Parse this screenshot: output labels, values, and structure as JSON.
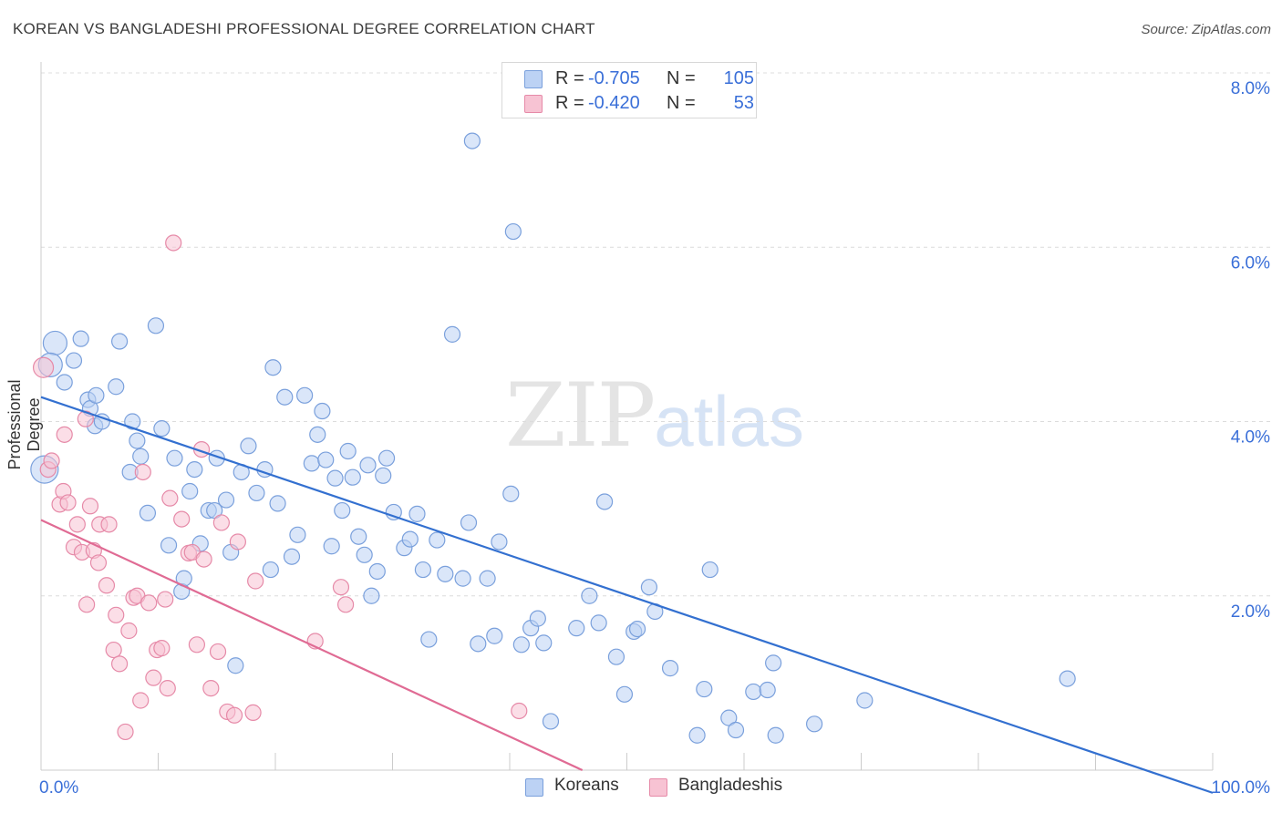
{
  "title": "KOREAN VS BANGLADESHI PROFESSIONAL DEGREE CORRELATION CHART",
  "source": "Source: ZipAtlas.com",
  "watermark": {
    "zip": "ZIP",
    "atlas": "atlas"
  },
  "legend": {
    "rows": [
      {
        "r_label": "R =",
        "r_value": "-0.705",
        "n_label": "N =",
        "n_value": "105",
        "color": "#bcd2f4"
      },
      {
        "r_label": "R =",
        "r_value": "-0.420",
        "n_label": "N =",
        "n_value": "53",
        "color": "#f7c3d3"
      }
    ]
  },
  "bottom_legend": {
    "koreans": "Koreans",
    "bangladeshis": "Bangladeshis"
  },
  "chart_data": {
    "type": "scatter",
    "ylabel": "Professional Degree",
    "xlim": [
      0,
      100
    ],
    "ylim": [
      0,
      8.0
    ],
    "y_ticks": [
      "2.0%",
      "4.0%",
      "6.0%",
      "8.0%"
    ],
    "x_tick_labels": [
      "0.0%",
      "100.0%"
    ],
    "grid": true,
    "series": [
      {
        "name": "Koreans",
        "color": "#7aa0dc",
        "fill": "#bcd2f4",
        "trend": {
          "x0": 0,
          "y0": 4.28,
          "x1": 100,
          "y1": -0.26,
          "color": "#3370d0"
        },
        "points": [
          [
            1.2,
            4.9
          ],
          [
            0.8,
            4.65
          ],
          [
            0.3,
            3.45
          ],
          [
            2.0,
            4.45
          ],
          [
            3.4,
            4.95
          ],
          [
            2.8,
            4.7
          ],
          [
            4.0,
            4.25
          ],
          [
            4.2,
            4.15
          ],
          [
            4.7,
            4.3
          ],
          [
            4.6,
            3.95
          ],
          [
            5.2,
            4.0
          ],
          [
            6.4,
            4.4
          ],
          [
            6.7,
            4.92
          ],
          [
            7.6,
            3.42
          ],
          [
            7.8,
            4.0
          ],
          [
            8.2,
            3.78
          ],
          [
            8.5,
            3.6
          ],
          [
            9.1,
            2.95
          ],
          [
            9.8,
            5.1
          ],
          [
            10.3,
            3.92
          ],
          [
            10.9,
            2.58
          ],
          [
            11.4,
            3.58
          ],
          [
            12.0,
            2.05
          ],
          [
            12.2,
            2.2
          ],
          [
            12.7,
            3.2
          ],
          [
            13.1,
            3.45
          ],
          [
            13.6,
            2.6
          ],
          [
            14.3,
            2.98
          ],
          [
            14.8,
            2.98
          ],
          [
            15.0,
            3.58
          ],
          [
            15.8,
            3.1
          ],
          [
            16.2,
            2.5
          ],
          [
            16.6,
            1.2
          ],
          [
            17.1,
            3.42
          ],
          [
            17.7,
            3.72
          ],
          [
            18.4,
            3.18
          ],
          [
            19.1,
            3.45
          ],
          [
            19.6,
            2.3
          ],
          [
            19.8,
            4.62
          ],
          [
            20.2,
            3.06
          ],
          [
            20.8,
            4.28
          ],
          [
            21.4,
            2.45
          ],
          [
            21.9,
            2.7
          ],
          [
            22.5,
            4.3
          ],
          [
            23.1,
            3.52
          ],
          [
            23.6,
            3.85
          ],
          [
            24.0,
            4.12
          ],
          [
            24.3,
            3.56
          ],
          [
            24.8,
            2.57
          ],
          [
            25.1,
            3.35
          ],
          [
            25.7,
            2.98
          ],
          [
            26.2,
            3.66
          ],
          [
            26.6,
            3.36
          ],
          [
            27.1,
            2.68
          ],
          [
            27.6,
            2.47
          ],
          [
            27.9,
            3.5
          ],
          [
            28.2,
            2.0
          ],
          [
            28.7,
            2.28
          ],
          [
            29.2,
            3.38
          ],
          [
            29.5,
            3.58
          ],
          [
            30.1,
            2.96
          ],
          [
            31.0,
            2.55
          ],
          [
            31.5,
            2.65
          ],
          [
            32.1,
            2.94
          ],
          [
            32.6,
            2.3
          ],
          [
            33.1,
            1.5
          ],
          [
            33.8,
            2.64
          ],
          [
            34.5,
            2.25
          ],
          [
            35.1,
            5.0
          ],
          [
            36.0,
            2.2
          ],
          [
            36.5,
            2.84
          ],
          [
            36.8,
            7.22
          ],
          [
            37.3,
            1.45
          ],
          [
            38.1,
            2.2
          ],
          [
            38.7,
            1.54
          ],
          [
            39.1,
            2.62
          ],
          [
            40.1,
            3.17
          ],
          [
            41.0,
            1.44
          ],
          [
            41.8,
            1.63
          ],
          [
            42.4,
            1.74
          ],
          [
            42.9,
            1.46
          ],
          [
            43.5,
            0.56
          ],
          [
            45.7,
            1.63
          ],
          [
            46.8,
            2.0
          ],
          [
            47.6,
            1.69
          ],
          [
            48.1,
            3.08
          ],
          [
            49.1,
            1.3
          ],
          [
            49.8,
            0.87
          ],
          [
            50.6,
            1.59
          ],
          [
            50.9,
            1.62
          ],
          [
            51.9,
            2.1
          ],
          [
            52.4,
            1.82
          ],
          [
            53.7,
            1.17
          ],
          [
            56.0,
            0.4
          ],
          [
            56.6,
            0.93
          ],
          [
            57.1,
            2.3
          ],
          [
            58.7,
            0.6
          ],
          [
            59.3,
            0.46
          ],
          [
            60.8,
            0.9
          ],
          [
            62.0,
            0.92
          ],
          [
            62.5,
            1.23
          ],
          [
            62.7,
            0.4
          ],
          [
            66.0,
            0.53
          ],
          [
            70.3,
            0.8
          ],
          [
            87.6,
            1.05
          ],
          [
            40.3,
            6.18
          ]
        ]
      },
      {
        "name": "Bangladeshis",
        "color": "#e68aa8",
        "fill": "#f7c3d3",
        "trend": {
          "x0": 0,
          "y0": 2.87,
          "x1": 46.2,
          "y1": 0.0,
          "color": "#e06b94"
        },
        "points": [
          [
            0.2,
            4.62
          ],
          [
            0.6,
            3.45
          ],
          [
            0.9,
            3.55
          ],
          [
            1.6,
            3.05
          ],
          [
            1.9,
            3.2
          ],
          [
            2.0,
            3.85
          ],
          [
            2.3,
            3.07
          ],
          [
            2.8,
            2.56
          ],
          [
            3.1,
            2.82
          ],
          [
            3.5,
            2.5
          ],
          [
            3.8,
            4.03
          ],
          [
            3.9,
            1.9
          ],
          [
            4.2,
            3.03
          ],
          [
            4.5,
            2.52
          ],
          [
            4.9,
            2.38
          ],
          [
            5.0,
            2.82
          ],
          [
            5.6,
            2.12
          ],
          [
            5.8,
            2.82
          ],
          [
            6.2,
            1.38
          ],
          [
            6.4,
            1.78
          ],
          [
            6.7,
            1.22
          ],
          [
            7.2,
            0.44
          ],
          [
            7.5,
            1.6
          ],
          [
            7.9,
            1.98
          ],
          [
            8.2,
            2.0
          ],
          [
            8.5,
            0.8
          ],
          [
            8.7,
            3.42
          ],
          [
            9.2,
            1.92
          ],
          [
            9.6,
            1.06
          ],
          [
            9.9,
            1.38
          ],
          [
            10.3,
            1.4
          ],
          [
            10.6,
            1.96
          ],
          [
            10.8,
            0.94
          ],
          [
            11.0,
            3.12
          ],
          [
            11.3,
            6.05
          ],
          [
            12.0,
            2.88
          ],
          [
            12.6,
            2.49
          ],
          [
            12.9,
            2.5
          ],
          [
            13.3,
            1.44
          ],
          [
            13.7,
            3.68
          ],
          [
            13.9,
            2.42
          ],
          [
            14.5,
            0.94
          ],
          [
            15.1,
            1.36
          ],
          [
            15.4,
            2.84
          ],
          [
            15.9,
            0.67
          ],
          [
            16.5,
            0.63
          ],
          [
            16.8,
            2.62
          ],
          [
            18.1,
            0.66
          ],
          [
            18.3,
            2.17
          ],
          [
            23.4,
            1.48
          ],
          [
            25.6,
            2.1
          ],
          [
            26.0,
            1.9
          ],
          [
            40.8,
            0.68
          ]
        ]
      }
    ]
  }
}
